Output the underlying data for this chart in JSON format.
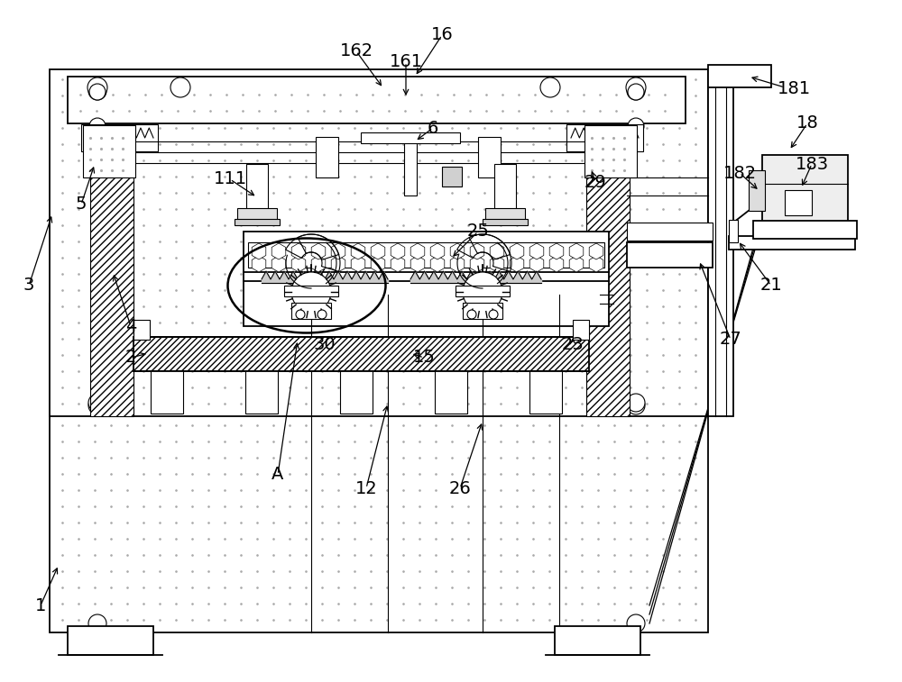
{
  "bg_color": "#ffffff",
  "lc": "#000000",
  "fig_width": 10.0,
  "fig_height": 7.57,
  "dot_color": "#bbbbbb",
  "gray_light": "#f0f0f0",
  "gray_mid": "#d8d8d8"
}
